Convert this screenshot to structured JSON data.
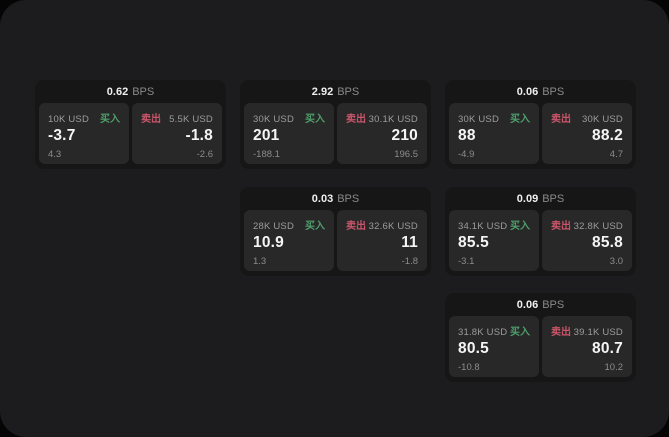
{
  "labels": {
    "bps": "BPS",
    "buy": "买入",
    "sell": "卖出"
  },
  "colors": {
    "window_bg": "#1c1c1e",
    "card_bg": "#161616",
    "panel_bg": "#282828",
    "buy_green": "#4f9e6b",
    "sell_red": "#c9556a"
  },
  "cards": [
    {
      "bps": "0.62",
      "buy": {
        "amount": "10K USD",
        "price": "-3.7",
        "delta": "4.3"
      },
      "sell": {
        "amount": "5.5K USD",
        "price": "-1.8",
        "delta": "-2.6"
      }
    },
    {
      "bps": "2.92",
      "buy": {
        "amount": "30K USD",
        "price": "201",
        "delta": "-188.1"
      },
      "sell": {
        "amount": "30.1K USD",
        "price": "210",
        "delta": "196.5"
      }
    },
    {
      "bps": "0.06",
      "buy": {
        "amount": "30K USD",
        "price": "88",
        "delta": "-4.9"
      },
      "sell": {
        "amount": "30K USD",
        "price": "88.2",
        "delta": "4.7"
      }
    },
    {
      "bps": "0.03",
      "buy": {
        "amount": "28K USD",
        "price": "10.9",
        "delta": "1.3"
      },
      "sell": {
        "amount": "32.6K USD",
        "price": "11",
        "delta": "-1.8"
      }
    },
    {
      "bps": "0.09",
      "buy": {
        "amount": "34.1K USD",
        "price": "85.5",
        "delta": "-3.1"
      },
      "sell": {
        "amount": "32.8K USD",
        "price": "85.8",
        "delta": "3.0"
      }
    },
    {
      "bps": "0.06",
      "buy": {
        "amount": "31.8K USD",
        "price": "80.5",
        "delta": "-10.8"
      },
      "sell": {
        "amount": "39.1K USD",
        "price": "80.7",
        "delta": "10.2"
      }
    }
  ]
}
